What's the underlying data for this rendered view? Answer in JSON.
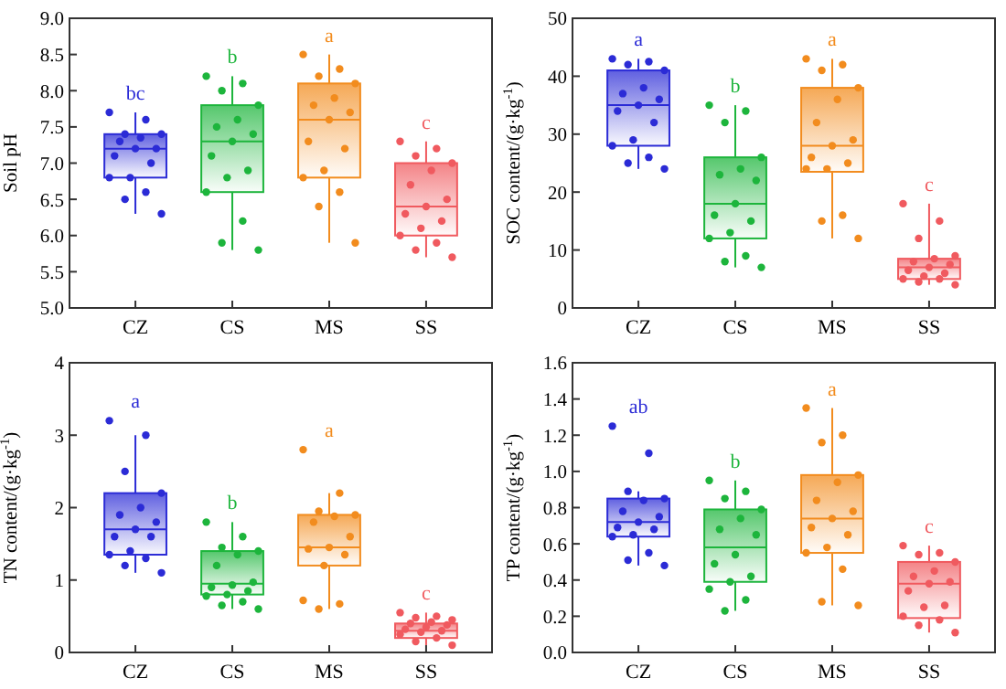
{
  "chart_data": [
    {
      "type": "box",
      "ylabel": "Soil pH",
      "categories": [
        "CZ",
        "CS",
        "MS",
        "SS"
      ],
      "ylim": [
        5,
        9
      ],
      "yticks": [
        {
          "value": 5,
          "label": "5.0"
        },
        5.5,
        {
          "value": 6,
          "label": "6.0"
        },
        6.5,
        {
          "value": 7,
          "label": "7.0"
        },
        7.5,
        {
          "value": 8,
          "label": "8.0"
        },
        8.5,
        {
          "value": 9,
          "label": "9.0"
        }
      ],
      "marker": "circle",
      "annotations": [
        "bc",
        "b",
        "a",
        "c"
      ],
      "series": [
        {
          "colors": [
            "#2b2bd6",
            "#1db53c",
            "#f28c1e",
            "#f05a5f"
          ],
          "boxes": [
            {
              "low": 6.3,
              "q1": 6.8,
              "median": 7.2,
              "q3": 7.4,
              "high": 7.7
            },
            {
              "low": 5.8,
              "q1": 6.6,
              "median": 7.3,
              "q3": 7.8,
              "high": 8.2
            },
            {
              "low": 5.9,
              "q1": 6.8,
              "median": 7.6,
              "q3": 8.1,
              "high": 8.5
            },
            {
              "low": 5.7,
              "q1": 6.0,
              "median": 6.4,
              "q3": 7.0,
              "high": 7.3
            }
          ]
        },
        {
          "type": "scatter",
          "color": "#2b2bd6",
          "x": [
            "CZ",
            "CZ",
            "CZ",
            "CZ",
            "CZ",
            "CZ",
            "CZ",
            "CZ",
            "CZ",
            "CZ",
            "CZ",
            "CZ",
            "CZ",
            "CZ",
            "CZ"
          ],
          "values": [
            7.7,
            7.6,
            7.4,
            7.4,
            7.35,
            7.3,
            7.2,
            7.2,
            7.1,
            7.0,
            6.8,
            6.8,
            6.6,
            6.5,
            6.3
          ]
        },
        {
          "type": "scatter",
          "color": "#1db53c",
          "x": [
            "CS",
            "CS",
            "CS",
            "CS",
            "CS",
            "CS",
            "CS",
            "CS",
            "CS",
            "CS",
            "CS",
            "CS",
            "CS",
            "CS",
            "CS"
          ],
          "values": [
            8.2,
            8.1,
            8.0,
            7.8,
            7.6,
            7.5,
            7.4,
            7.3,
            7.1,
            6.9,
            6.8,
            6.6,
            6.2,
            5.9,
            5.8
          ]
        },
        {
          "type": "scatter",
          "color": "#f28c1e",
          "x": [
            "MS",
            "MS",
            "MS",
            "MS",
            "MS",
            "MS",
            "MS",
            "MS",
            "MS",
            "MS",
            "MS",
            "MS",
            "MS",
            "MS",
            "MS"
          ],
          "values": [
            8.5,
            8.3,
            8.2,
            8.1,
            7.9,
            7.8,
            7.7,
            7.6,
            7.3,
            7.2,
            6.9,
            6.8,
            6.6,
            6.4,
            5.9
          ]
        },
        {
          "type": "scatter",
          "color": "#f05a5f",
          "x": [
            "SS",
            "SS",
            "SS",
            "SS",
            "SS",
            "SS",
            "SS",
            "SS",
            "SS",
            "SS",
            "SS",
            "SS",
            "SS",
            "SS",
            "SS"
          ],
          "values": [
            7.3,
            7.2,
            7.1,
            7.0,
            6.9,
            6.7,
            6.5,
            6.4,
            6.3,
            6.2,
            6.1,
            6.0,
            5.9,
            5.8,
            5.7
          ]
        }
      ]
    },
    {
      "type": "box",
      "ylabel": "SOC content/(g·kg$^{-1}$)",
      "categories": [
        "CZ",
        "CS",
        "MS",
        "SS"
      ],
      "ylim": [
        0,
        50
      ],
      "yticks": [
        0,
        10,
        20,
        30,
        40,
        50
      ],
      "marker": "circle",
      "annotations": [
        "a",
        "b",
        "a",
        "c"
      ],
      "series": [
        {
          "colors": [
            "#2b2bd6",
            "#1db53c",
            "#f28c1e",
            "#f05a5f"
          ],
          "boxes": [
            {
              "low": 24,
              "q1": 28,
              "median": 35,
              "q3": 41,
              "high": 43
            },
            {
              "low": 7,
              "q1": 12,
              "median": 18,
              "q3": 26,
              "high": 35
            },
            {
              "low": 12,
              "q1": 23.5,
              "median": 28,
              "q3": 38,
              "high": 43
            },
            {
              "low": 4,
              "q1": 5,
              "median": 7,
              "q3": 8.5,
              "high": 18
            }
          ]
        },
        {
          "type": "scatter",
          "color": "#2b2bd6",
          "x": [
            "CZ",
            "CZ",
            "CZ",
            "CZ",
            "CZ",
            "CZ",
            "CZ",
            "CZ",
            "CZ",
            "CZ",
            "CZ",
            "CZ",
            "CZ",
            "CZ",
            "CZ"
          ],
          "values": [
            43,
            42.5,
            42,
            41,
            38,
            37,
            36,
            35,
            34,
            32,
            29,
            28,
            26,
            25,
            24
          ]
        },
        {
          "type": "scatter",
          "color": "#1db53c",
          "x": [
            "CS",
            "CS",
            "CS",
            "CS",
            "CS",
            "CS",
            "CS",
            "CS",
            "CS",
            "CS",
            "CS",
            "CS",
            "CS",
            "CS",
            "CS"
          ],
          "values": [
            35,
            34,
            32,
            26,
            24,
            23,
            22,
            18,
            16,
            15,
            13,
            12,
            9,
            8,
            7
          ]
        },
        {
          "type": "scatter",
          "color": "#f28c1e",
          "x": [
            "MS",
            "MS",
            "MS",
            "MS",
            "MS",
            "MS",
            "MS",
            "MS",
            "MS",
            "MS",
            "MS",
            "MS",
            "MS",
            "MS",
            "MS"
          ],
          "values": [
            43,
            42,
            41,
            38,
            36,
            32,
            29,
            28,
            26,
            25,
            24,
            24,
            16,
            15,
            12
          ]
        },
        {
          "type": "scatter",
          "color": "#f05a5f",
          "x": [
            "SS",
            "SS",
            "SS",
            "SS",
            "SS",
            "SS",
            "SS",
            "SS",
            "SS",
            "SS",
            "SS",
            "SS",
            "SS",
            "SS",
            "SS"
          ],
          "values": [
            18,
            15,
            12,
            9,
            8.5,
            8,
            7.5,
            7,
            6.5,
            6,
            5.5,
            5,
            5,
            4.5,
            4
          ]
        }
      ]
    },
    {
      "type": "box",
      "ylabel": "TN content/(g·kg$^{-1}$)",
      "categories": [
        "CZ",
        "CS",
        "MS",
        "SS"
      ],
      "ylim": [
        0,
        4
      ],
      "yticks": [
        0,
        1,
        2,
        3,
        4
      ],
      "marker": "circle",
      "annotations": [
        "a",
        "b",
        "a",
        "c"
      ],
      "series": [
        {
          "colors": [
            "#2b2bd6",
            "#1db53c",
            "#f28c1e",
            "#f05a5f"
          ],
          "boxes": [
            {
              "low": 1.1,
              "q1": 1.35,
              "median": 1.7,
              "q3": 2.2,
              "high": 3.0
            },
            {
              "low": 0.6,
              "q1": 0.8,
              "median": 0.95,
              "q3": 1.4,
              "high": 1.8
            },
            {
              "low": 0.6,
              "q1": 1.2,
              "median": 1.45,
              "q3": 1.9,
              "high": 2.2
            },
            {
              "low": 0.1,
              "q1": 0.2,
              "median": 0.3,
              "q3": 0.4,
              "high": 0.55
            }
          ]
        },
        {
          "type": "scatter",
          "color": "#2b2bd6",
          "x": [
            "CZ",
            "CZ",
            "CZ",
            "CZ",
            "CZ",
            "CZ",
            "CZ",
            "CZ",
            "CZ",
            "CZ",
            "CZ",
            "CZ",
            "CZ",
            "CZ",
            "CZ"
          ],
          "values": [
            3.2,
            3.0,
            2.5,
            2.2,
            2.0,
            1.9,
            1.8,
            1.7,
            1.6,
            1.6,
            1.4,
            1.35,
            1.3,
            1.2,
            1.1
          ]
        },
        {
          "type": "scatter",
          "color": "#1db53c",
          "x": [
            "CS",
            "CS",
            "CS",
            "CS",
            "CS",
            "CS",
            "CS",
            "CS",
            "CS",
            "CS",
            "CS",
            "CS",
            "CS",
            "CS",
            "CS"
          ],
          "values": [
            1.8,
            1.6,
            1.45,
            1.4,
            1.35,
            1.2,
            0.97,
            0.93,
            0.9,
            0.85,
            0.8,
            0.78,
            0.7,
            0.65,
            0.6
          ]
        },
        {
          "type": "scatter",
          "color": "#f28c1e",
          "x": [
            "MS",
            "MS",
            "MS",
            "MS",
            "MS",
            "MS",
            "MS",
            "MS",
            "MS",
            "MS",
            "MS",
            "MS",
            "MS",
            "MS"
          ],
          "values": [
            2.8,
            2.2,
            1.95,
            1.9,
            1.88,
            1.8,
            1.6,
            1.45,
            1.43,
            1.35,
            1.2,
            0.72,
            0.67,
            0.6
          ]
        },
        {
          "type": "scatter",
          "color": "#f05a5f",
          "x": [
            "SS",
            "SS",
            "SS",
            "SS",
            "SS",
            "SS",
            "SS",
            "SS",
            "SS",
            "SS",
            "SS",
            "SS",
            "SS",
            "SS",
            "SS"
          ],
          "values": [
            0.55,
            0.5,
            0.48,
            0.45,
            0.42,
            0.4,
            0.38,
            0.35,
            0.32,
            0.3,
            0.28,
            0.25,
            0.2,
            0.15,
            0.1
          ]
        }
      ]
    },
    {
      "type": "box",
      "ylabel": "TP content/(g·kg$^{-1}$)",
      "categories": [
        "CZ",
        "CS",
        "MS",
        "SS"
      ],
      "ylim": [
        0,
        1.6
      ],
      "yticks": [
        {
          "value": 0,
          "label": "0.0"
        },
        0.2,
        0.4,
        0.6,
        0.8,
        {
          "value": 1,
          "label": "1.0"
        },
        1.2,
        1.4,
        1.6
      ],
      "marker": "circle",
      "annotations": [
        "ab",
        "b",
        "a",
        "c"
      ],
      "series": [
        {
          "colors": [
            "#2b2bd6",
            "#1db53c",
            "#f28c1e",
            "#f05a5f"
          ],
          "boxes": [
            {
              "low": 0.48,
              "q1": 0.64,
              "median": 0.72,
              "q3": 0.85,
              "high": 0.89
            },
            {
              "low": 0.23,
              "q1": 0.39,
              "median": 0.58,
              "q3": 0.79,
              "high": 0.95
            },
            {
              "low": 0.26,
              "q1": 0.55,
              "median": 0.74,
              "q3": 0.98,
              "high": 1.35
            },
            {
              "low": 0.11,
              "q1": 0.19,
              "median": 0.38,
              "q3": 0.5,
              "high": 0.59
            }
          ]
        },
        {
          "type": "scatter",
          "color": "#2b2bd6",
          "x": [
            "CZ",
            "CZ",
            "CZ",
            "CZ",
            "CZ",
            "CZ",
            "CZ",
            "CZ",
            "CZ",
            "CZ",
            "CZ",
            "CZ",
            "CZ",
            "CZ",
            "CZ"
          ],
          "values": [
            1.25,
            1.1,
            0.89,
            0.85,
            0.84,
            0.78,
            0.75,
            0.72,
            0.69,
            0.68,
            0.65,
            0.64,
            0.55,
            0.51,
            0.48
          ]
        },
        {
          "type": "scatter",
          "color": "#1db53c",
          "x": [
            "CS",
            "CS",
            "CS",
            "CS",
            "CS",
            "CS",
            "CS",
            "CS",
            "CS",
            "CS",
            "CS",
            "CS",
            "CS",
            "CS"
          ],
          "values": [
            0.95,
            0.89,
            0.85,
            0.79,
            0.74,
            0.68,
            0.65,
            0.54,
            0.49,
            0.42,
            0.39,
            0.35,
            0.29,
            0.23
          ]
        },
        {
          "type": "scatter",
          "color": "#f28c1e",
          "x": [
            "MS",
            "MS",
            "MS",
            "MS",
            "MS",
            "MS",
            "MS",
            "MS",
            "MS",
            "MS",
            "MS",
            "MS",
            "MS",
            "MS",
            "MS"
          ],
          "values": [
            1.35,
            1.2,
            1.16,
            0.98,
            0.94,
            0.84,
            0.78,
            0.74,
            0.69,
            0.65,
            0.58,
            0.55,
            0.46,
            0.28,
            0.26
          ]
        },
        {
          "type": "scatter",
          "color": "#f05a5f",
          "x": [
            "SS",
            "SS",
            "SS",
            "SS",
            "SS",
            "SS",
            "SS",
            "SS",
            "SS",
            "SS",
            "SS",
            "SS",
            "SS",
            "SS",
            "SS"
          ],
          "values": [
            0.59,
            0.55,
            0.54,
            0.5,
            0.45,
            0.42,
            0.39,
            0.38,
            0.34,
            0.26,
            0.25,
            0.2,
            0.18,
            0.15,
            0.11
          ]
        }
      ]
    }
  ]
}
